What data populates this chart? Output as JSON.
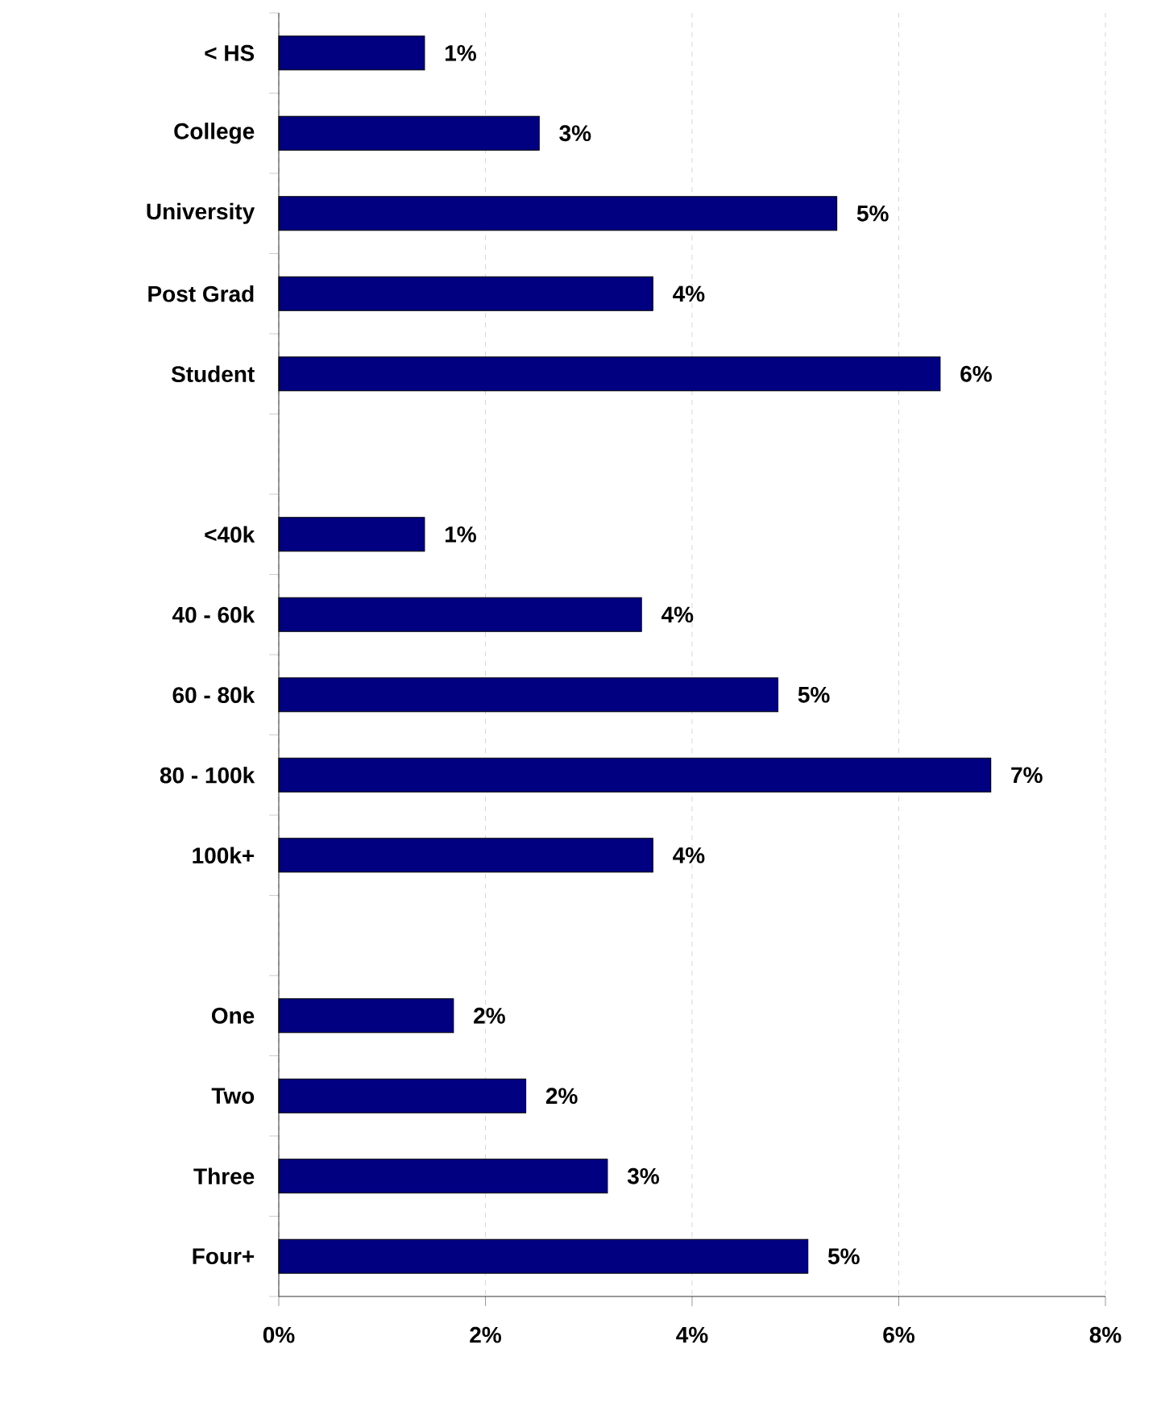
{
  "chart_data": {
    "type": "bar",
    "orientation": "horizontal",
    "categories": [
      "< HS",
      "College",
      "University",
      "Post Grad",
      "Student",
      null,
      "<40k",
      "40 - 60k",
      "60 - 80k",
      "80 - 100k",
      "100k+",
      null,
      "One",
      "Two",
      "Three",
      "Four+"
    ],
    "values": [
      1.41,
      2.52,
      5.4,
      3.62,
      6.4,
      null,
      1.41,
      3.51,
      4.83,
      6.89,
      3.62,
      null,
      1.69,
      2.39,
      3.18,
      5.12
    ],
    "value_labels": [
      "1%",
      "3%",
      "5%",
      "4%",
      "6%",
      null,
      "1%",
      "4%",
      "5%",
      "7%",
      "4%",
      null,
      "2%",
      "2%",
      "3%",
      "5%"
    ],
    "color": "#000080",
    "xlim": [
      0,
      8
    ],
    "xticks": [
      {
        "value": 0,
        "label": "0%"
      },
      {
        "value": 2,
        "label": "2%"
      },
      {
        "value": 4,
        "label": "4%"
      },
      {
        "value": 6,
        "label": "6%"
      },
      {
        "value": 8,
        "label": "8%"
      }
    ],
    "grid": "x"
  }
}
